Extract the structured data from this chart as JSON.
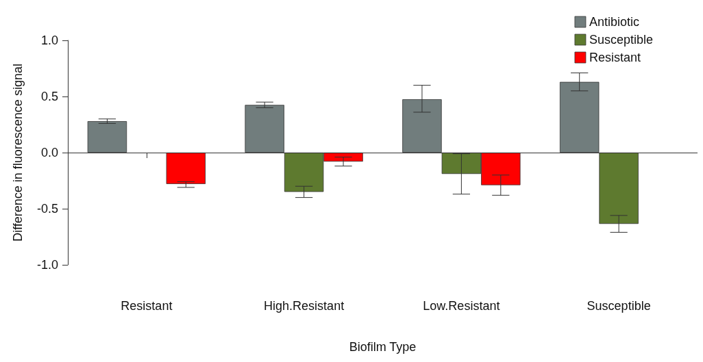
{
  "chart_data": {
    "type": "bar",
    "xlabel": "Biofilm Type",
    "ylabel": "Difference in fluorescence signal",
    "categories": [
      "Resistant",
      "High.Resistant",
      "Low.Resistant",
      "Susceptible"
    ],
    "series": [
      {
        "name": "Antibiotic",
        "color": "#717d7d",
        "values": [
          0.28,
          0.425,
          0.475,
          0.63
        ],
        "errors": [
          [
            0.26,
            0.3
          ],
          [
            0.4,
            0.45
          ],
          [
            0.36,
            0.6
          ],
          [
            0.55,
            0.71
          ]
        ]
      },
      {
        "name": "Susceptible",
        "color": "#5e7a2f",
        "values": [
          null,
          -0.35,
          -0.19,
          -0.635
        ],
        "errors": [
          null,
          [
            -0.4,
            -0.3
          ],
          [
            -0.37,
            -0.01
          ],
          [
            -0.71,
            -0.56
          ]
        ]
      },
      {
        "name": "Resistant",
        "color": "#ff0000",
        "values": [
          -0.28,
          -0.08,
          -0.29,
          null
        ],
        "errors": [
          [
            -0.31,
            -0.26
          ],
          [
            -0.12,
            -0.04
          ],
          [
            -0.38,
            -0.2
          ],
          null
        ]
      }
    ],
    "ylim": [
      -1,
      1
    ],
    "yticks": [
      {
        "value": -1,
        "label": "-1.0"
      },
      {
        "value": -0.5,
        "label": "-0.5"
      },
      {
        "value": 0,
        "label": "0.0"
      },
      {
        "value": 0.5,
        "label": "0.5"
      },
      {
        "value": 1,
        "label": "1.0"
      }
    ],
    "ref_lines": [
      {
        "axis": "y",
        "value": 0,
        "label": null,
        "color": "#333333"
      }
    ],
    "grid": false,
    "legend": "top right"
  }
}
